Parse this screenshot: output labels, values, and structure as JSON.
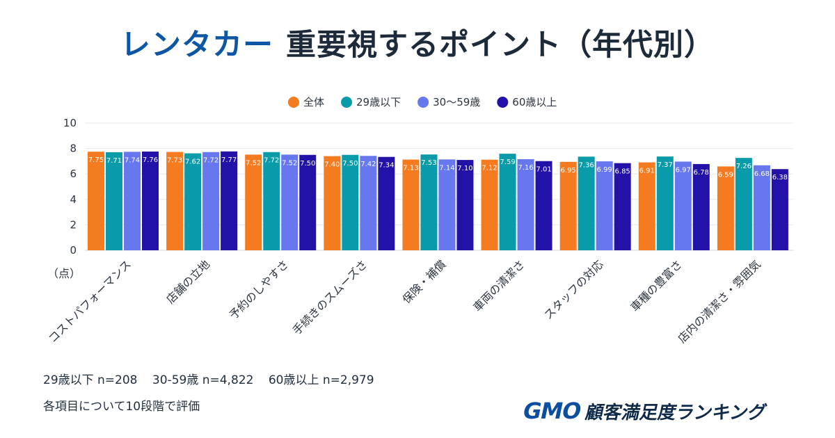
{
  "title": {
    "accent": "レンタカー",
    "rest": "重要視するポイント（年代別）"
  },
  "colors": {
    "全体": "#f47b20",
    "29歳以下": "#0a9bab",
    "30〜59歳": "#6777ee",
    "60歳以上": "#2312a8"
  },
  "chart_data": {
    "type": "bar",
    "categories": [
      "コストパフォーマンス",
      "店舗の立地",
      "予約のしやすさ",
      "手続きのスムーズさ",
      "保険・補償",
      "車両の清潔さ",
      "スタッフの対応",
      "車種の豊富さ",
      "店内の清潔さ・雰囲気"
    ],
    "series": [
      {
        "name": "全体",
        "color": "#f47b20",
        "values": [
          7.75,
          7.73,
          7.52,
          7.4,
          7.13,
          7.12,
          6.95,
          6.91,
          6.59
        ],
        "labels": [
          "7.75",
          "7.73",
          "7.52",
          "7.40",
          "7.13",
          "7.12",
          "6.95",
          "6.91",
          "6.59"
        ]
      },
      {
        "name": "29歳以下",
        "color": "#0a9bab",
        "values": [
          7.71,
          7.62,
          7.72,
          7.5,
          7.53,
          7.59,
          7.36,
          7.37,
          7.26
        ],
        "labels": [
          "7.71",
          "7.62",
          "7.72",
          "7.50",
          "7.53",
          "7.59",
          "7.36",
          "7.37",
          "7.26"
        ]
      },
      {
        "name": "30〜59歳",
        "color": "#6777ee",
        "values": [
          7.74,
          7.72,
          7.52,
          7.42,
          7.14,
          7.16,
          6.99,
          6.97,
          6.68
        ],
        "labels": [
          "7.74",
          "7.72",
          "7.52",
          "7.42",
          "7.14",
          "7.16",
          "6.99",
          "6.97",
          "6.68"
        ]
      },
      {
        "name": "60歳以上",
        "color": "#2312a8",
        "values": [
          7.76,
          7.77,
          7.5,
          7.34,
          7.1,
          7.01,
          6.85,
          6.78,
          6.38
        ],
        "labels": [
          "7.76",
          "7.77",
          "7.50",
          "7.34",
          "7.10",
          "7.01",
          "6.85",
          "6.78",
          "6.38"
        ]
      }
    ],
    "ylim": [
      0,
      10
    ],
    "yticks": [
      "0",
      "2",
      "4",
      "6",
      "8",
      "10"
    ],
    "ytick_values": [
      0,
      2,
      4,
      6,
      8,
      10
    ],
    "y_unit": "（点）",
    "legend_position": "top-center",
    "grid": true
  },
  "footnotes": {
    "sample": [
      "29歳以下 n=208",
      "30-59歳 n=4,822",
      "60歳以上 n=2,979"
    ],
    "note": "各項目について10段階で評価"
  },
  "logo": {
    "gmo": "GMO",
    "text": "顧客満足度ランキング"
  }
}
